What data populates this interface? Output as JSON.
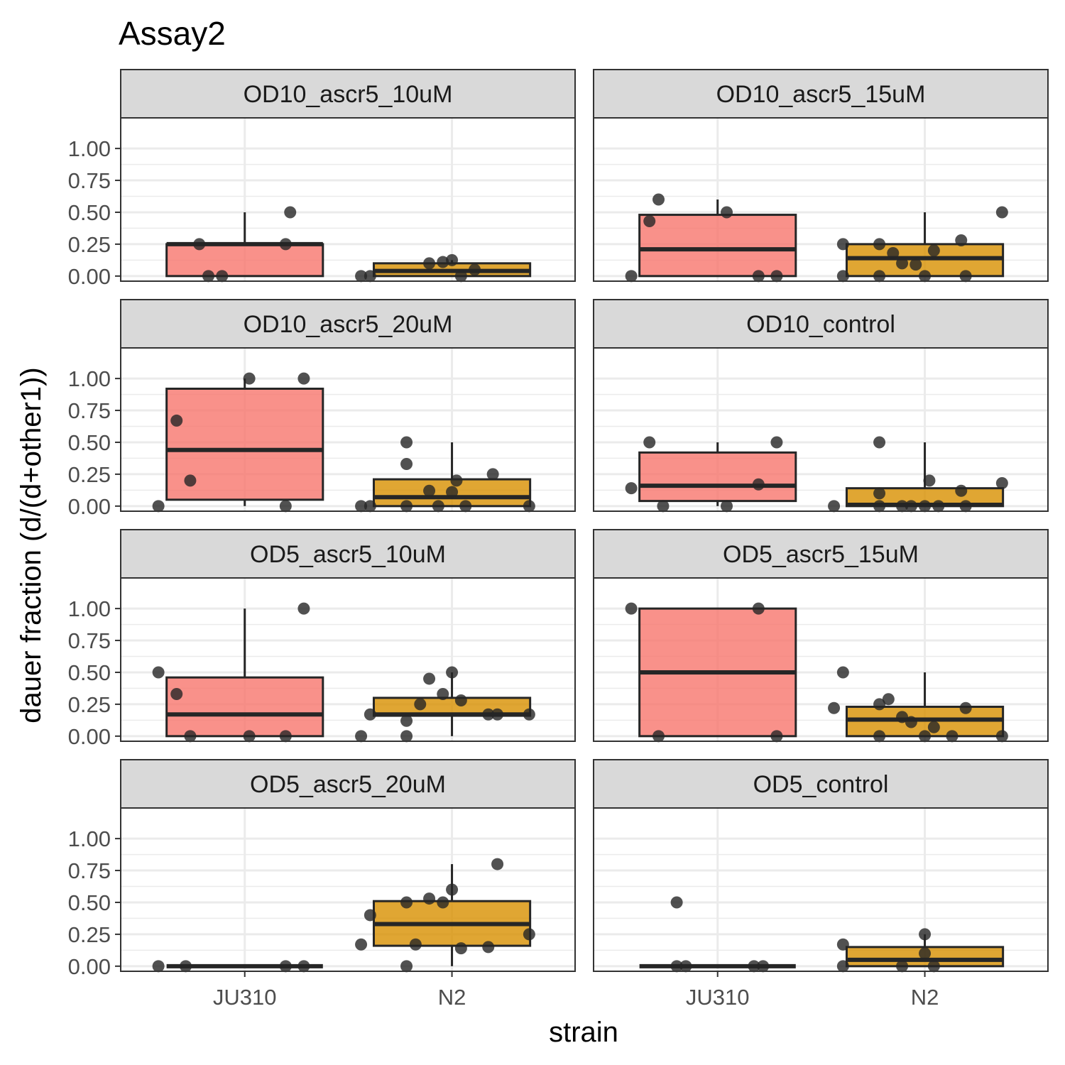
{
  "chart_data": {
    "type": "box",
    "title": "Assay2",
    "xlabel": "strain",
    "ylabel": "dauer fraction (d/(d+other1))",
    "categories": [
      "JU310",
      "N2"
    ],
    "ylim": [
      -0.04,
      1.24
    ],
    "y_ticks": [
      0,
      0.25,
      0.5,
      0.75,
      1
    ],
    "y_tick_labels": [
      "0.00",
      "0.25",
      "0.50",
      "0.75",
      "1.00"
    ],
    "grid": true,
    "legend": "none",
    "colors": {
      "JU310": "#F8766D",
      "N2": "#D89000",
      "box_edge": "#262626",
      "point": "#262626",
      "strip_bg": "#D9D9D9",
      "grid": "#EBEBEB"
    },
    "panels": [
      {
        "label": "OD10_ascr5_10uM",
        "boxes": [
          {
            "strain": "JU310",
            "q1": 0,
            "median": 0.25,
            "q3": 0.25,
            "whisker_low": 0,
            "whisker_high": 0.5
          },
          {
            "strain": "N2",
            "q1": 0,
            "median": 0.04,
            "q3": 0.1,
            "whisker_low": 0,
            "whisker_high": 0.125
          }
        ],
        "points": [
          {
            "strain": "JU310",
            "offset": -0.05,
            "y": 0
          },
          {
            "strain": "JU310",
            "offset": -0.08,
            "y": 0
          },
          {
            "strain": "JU310",
            "offset": -0.1,
            "y": 0.25
          },
          {
            "strain": "JU310",
            "offset": 0.09,
            "y": 0.25
          },
          {
            "strain": "JU310",
            "offset": 0.1,
            "y": 0.5
          },
          {
            "strain": "N2",
            "offset": -0.2,
            "y": 0
          },
          {
            "strain": "N2",
            "offset": -0.18,
            "y": 0
          },
          {
            "strain": "N2",
            "offset": 0.02,
            "y": 0
          },
          {
            "strain": "N2",
            "offset": 0.05,
            "y": 0.05
          },
          {
            "strain": "N2",
            "offset": -0.05,
            "y": 0.1
          },
          {
            "strain": "N2",
            "offset": -0.02,
            "y": 0.11
          },
          {
            "strain": "N2",
            "offset": 0.0,
            "y": 0.125
          }
        ]
      },
      {
        "label": "OD10_ascr5_15uM",
        "boxes": [
          {
            "strain": "JU310",
            "q1": 0,
            "median": 0.21,
            "q3": 0.48,
            "whisker_low": 0,
            "whisker_high": 0.6
          },
          {
            "strain": "N2",
            "q1": 0,
            "median": 0.14,
            "q3": 0.25,
            "whisker_low": 0,
            "whisker_high": 0.5
          }
        ],
        "points": [
          {
            "strain": "JU310",
            "offset": -0.19,
            "y": 0
          },
          {
            "strain": "JU310",
            "offset": -0.15,
            "y": 0.43
          },
          {
            "strain": "JU310",
            "offset": -0.13,
            "y": 0.6
          },
          {
            "strain": "JU310",
            "offset": 0.02,
            "y": 0.5
          },
          {
            "strain": "JU310",
            "offset": 0.09,
            "y": 0
          },
          {
            "strain": "JU310",
            "offset": 0.13,
            "y": 0
          },
          {
            "strain": "N2",
            "offset": -0.18,
            "y": 0.25
          },
          {
            "strain": "N2",
            "offset": -0.18,
            "y": 0
          },
          {
            "strain": "N2",
            "offset": -0.1,
            "y": 0
          },
          {
            "strain": "N2",
            "offset": -0.1,
            "y": 0.25
          },
          {
            "strain": "N2",
            "offset": -0.07,
            "y": 0.18
          },
          {
            "strain": "N2",
            "offset": -0.05,
            "y": 0.1
          },
          {
            "strain": "N2",
            "offset": -0.02,
            "y": 0.09
          },
          {
            "strain": "N2",
            "offset": 0.0,
            "y": 0
          },
          {
            "strain": "N2",
            "offset": 0.02,
            "y": 0.2
          },
          {
            "strain": "N2",
            "offset": 0.08,
            "y": 0.28
          },
          {
            "strain": "N2",
            "offset": 0.09,
            "y": 0
          },
          {
            "strain": "N2",
            "offset": 0.17,
            "y": 0.5
          }
        ]
      },
      {
        "label": "OD10_ascr5_20uM",
        "boxes": [
          {
            "strain": "JU310",
            "q1": 0.05,
            "median": 0.44,
            "q3": 0.92,
            "whisker_low": 0,
            "whisker_high": 1
          },
          {
            "strain": "N2",
            "q1": 0,
            "median": 0.07,
            "q3": 0.21,
            "whisker_low": 0,
            "whisker_high": 0.5
          }
        ],
        "points": [
          {
            "strain": "JU310",
            "offset": -0.19,
            "y": 0
          },
          {
            "strain": "JU310",
            "offset": -0.15,
            "y": 0.67
          },
          {
            "strain": "JU310",
            "offset": -0.12,
            "y": 0.2
          },
          {
            "strain": "JU310",
            "offset": 0.01,
            "y": 1
          },
          {
            "strain": "JU310",
            "offset": 0.09,
            "y": 0
          },
          {
            "strain": "JU310",
            "offset": 0.13,
            "y": 1
          },
          {
            "strain": "N2",
            "offset": -0.2,
            "y": 0
          },
          {
            "strain": "N2",
            "offset": -0.18,
            "y": 0
          },
          {
            "strain": "N2",
            "offset": -0.1,
            "y": 0.5
          },
          {
            "strain": "N2",
            "offset": -0.1,
            "y": 0.33
          },
          {
            "strain": "N2",
            "offset": -0.1,
            "y": 0
          },
          {
            "strain": "N2",
            "offset": -0.05,
            "y": 0.12
          },
          {
            "strain": "N2",
            "offset": -0.03,
            "y": 0
          },
          {
            "strain": "N2",
            "offset": 0.0,
            "y": 0.11
          },
          {
            "strain": "N2",
            "offset": 0.01,
            "y": 0.2
          },
          {
            "strain": "N2",
            "offset": 0.03,
            "y": 0
          },
          {
            "strain": "N2",
            "offset": 0.09,
            "y": 0.25
          },
          {
            "strain": "N2",
            "offset": 0.17,
            "y": 0
          }
        ]
      },
      {
        "label": "OD10_control",
        "boxes": [
          {
            "strain": "JU310",
            "q1": 0.04,
            "median": 0.16,
            "q3": 0.42,
            "whisker_low": 0,
            "whisker_high": 0.5
          },
          {
            "strain": "N2",
            "q1": 0,
            "median": 0.01,
            "q3": 0.14,
            "whisker_low": 0,
            "whisker_high": 0.5
          }
        ],
        "points": [
          {
            "strain": "JU310",
            "offset": -0.19,
            "y": 0.14
          },
          {
            "strain": "JU310",
            "offset": -0.15,
            "y": 0.5
          },
          {
            "strain": "JU310",
            "offset": -0.12,
            "y": 0
          },
          {
            "strain": "JU310",
            "offset": 0.02,
            "y": 0
          },
          {
            "strain": "JU310",
            "offset": 0.09,
            "y": 0.17
          },
          {
            "strain": "JU310",
            "offset": 0.13,
            "y": 0.5
          },
          {
            "strain": "N2",
            "offset": -0.2,
            "y": 0
          },
          {
            "strain": "N2",
            "offset": -0.1,
            "y": 0.1
          },
          {
            "strain": "N2",
            "offset": -0.1,
            "y": 0.5
          },
          {
            "strain": "N2",
            "offset": -0.1,
            "y": 0
          },
          {
            "strain": "N2",
            "offset": -0.05,
            "y": 0
          },
          {
            "strain": "N2",
            "offset": -0.03,
            "y": 0
          },
          {
            "strain": "N2",
            "offset": 0.0,
            "y": 0
          },
          {
            "strain": "N2",
            "offset": 0.01,
            "y": 0.2
          },
          {
            "strain": "N2",
            "offset": 0.03,
            "y": 0
          },
          {
            "strain": "N2",
            "offset": 0.08,
            "y": 0.12
          },
          {
            "strain": "N2",
            "offset": 0.09,
            "y": 0
          },
          {
            "strain": "N2",
            "offset": 0.17,
            "y": 0.18
          }
        ]
      },
      {
        "label": "OD5_ascr5_10uM",
        "boxes": [
          {
            "strain": "JU310",
            "q1": 0,
            "median": 0.17,
            "q3": 0.46,
            "whisker_low": 0,
            "whisker_high": 1
          },
          {
            "strain": "N2",
            "q1": 0.16,
            "median": 0.17,
            "q3": 0.3,
            "whisker_low": 0,
            "whisker_high": 0.5
          }
        ],
        "points": [
          {
            "strain": "JU310",
            "offset": -0.19,
            "y": 0.5
          },
          {
            "strain": "JU310",
            "offset": -0.15,
            "y": 0.33
          },
          {
            "strain": "JU310",
            "offset": -0.12,
            "y": 0
          },
          {
            "strain": "JU310",
            "offset": 0.01,
            "y": 0
          },
          {
            "strain": "JU310",
            "offset": 0.09,
            "y": 0
          },
          {
            "strain": "JU310",
            "offset": 0.13,
            "y": 1
          },
          {
            "strain": "N2",
            "offset": -0.2,
            "y": 0
          },
          {
            "strain": "N2",
            "offset": -0.18,
            "y": 0.17
          },
          {
            "strain": "N2",
            "offset": -0.1,
            "y": 0.12
          },
          {
            "strain": "N2",
            "offset": -0.1,
            "y": 0
          },
          {
            "strain": "N2",
            "offset": -0.05,
            "y": 0.45
          },
          {
            "strain": "N2",
            "offset": -0.07,
            "y": 0.25
          },
          {
            "strain": "N2",
            "offset": -0.02,
            "y": 0.33
          },
          {
            "strain": "N2",
            "offset": 0.0,
            "y": 0.5
          },
          {
            "strain": "N2",
            "offset": 0.02,
            "y": 0.28
          },
          {
            "strain": "N2",
            "offset": 0.08,
            "y": 0.17
          },
          {
            "strain": "N2",
            "offset": 0.1,
            "y": 0.17
          },
          {
            "strain": "N2",
            "offset": 0.17,
            "y": 0.17
          }
        ]
      },
      {
        "label": "OD5_ascr5_15uM",
        "boxes": [
          {
            "strain": "JU310",
            "q1": 0,
            "median": 0.5,
            "q3": 1,
            "whisker_low": 0,
            "whisker_high": 1
          },
          {
            "strain": "N2",
            "q1": 0,
            "median": 0.13,
            "q3": 0.23,
            "whisker_low": 0,
            "whisker_high": 0.5
          }
        ],
        "points": [
          {
            "strain": "JU310",
            "offset": -0.19,
            "y": 1
          },
          {
            "strain": "JU310",
            "offset": -0.13,
            "y": 0
          },
          {
            "strain": "JU310",
            "offset": 0.09,
            "y": 1
          },
          {
            "strain": "JU310",
            "offset": 0.13,
            "y": 0
          },
          {
            "strain": "N2",
            "offset": -0.2,
            "y": 0.22
          },
          {
            "strain": "N2",
            "offset": -0.18,
            "y": 0.5
          },
          {
            "strain": "N2",
            "offset": -0.1,
            "y": 0
          },
          {
            "strain": "N2",
            "offset": -0.1,
            "y": 0.25
          },
          {
            "strain": "N2",
            "offset": -0.08,
            "y": 0.29
          },
          {
            "strain": "N2",
            "offset": -0.05,
            "y": 0.15
          },
          {
            "strain": "N2",
            "offset": -0.03,
            "y": 0.11
          },
          {
            "strain": "N2",
            "offset": 0.0,
            "y": 0
          },
          {
            "strain": "N2",
            "offset": 0.02,
            "y": 0.07
          },
          {
            "strain": "N2",
            "offset": 0.06,
            "y": 0
          },
          {
            "strain": "N2",
            "offset": 0.09,
            "y": 0.22
          },
          {
            "strain": "N2",
            "offset": 0.17,
            "y": 0
          }
        ]
      },
      {
        "label": "OD5_ascr5_20uM",
        "boxes": [
          {
            "strain": "JU310",
            "q1": 0,
            "median": 0,
            "q3": 0,
            "whisker_low": 0,
            "whisker_high": 0
          },
          {
            "strain": "N2",
            "q1": 0.16,
            "median": 0.33,
            "q3": 0.51,
            "whisker_low": 0,
            "whisker_high": 0.8
          }
        ],
        "points": [
          {
            "strain": "JU310",
            "offset": -0.19,
            "y": 0
          },
          {
            "strain": "JU310",
            "offset": -0.13,
            "y": 0
          },
          {
            "strain": "JU310",
            "offset": 0.09,
            "y": 0
          },
          {
            "strain": "JU310",
            "offset": 0.13,
            "y": 0
          },
          {
            "strain": "N2",
            "offset": -0.2,
            "y": 0.17
          },
          {
            "strain": "N2",
            "offset": -0.18,
            "y": 0.4
          },
          {
            "strain": "N2",
            "offset": -0.1,
            "y": 0.5
          },
          {
            "strain": "N2",
            "offset": -0.1,
            "y": 0
          },
          {
            "strain": "N2",
            "offset": -0.08,
            "y": 0.17
          },
          {
            "strain": "N2",
            "offset": -0.05,
            "y": 0.53
          },
          {
            "strain": "N2",
            "offset": -0.02,
            "y": 0.5
          },
          {
            "strain": "N2",
            "offset": 0.0,
            "y": 0.6
          },
          {
            "strain": "N2",
            "offset": 0.02,
            "y": 0.14
          },
          {
            "strain": "N2",
            "offset": 0.08,
            "y": 0.15
          },
          {
            "strain": "N2",
            "offset": 0.1,
            "y": 0.8
          },
          {
            "strain": "N2",
            "offset": 0.17,
            "y": 0.25
          }
        ]
      },
      {
        "label": "OD5_control",
        "boxes": [
          {
            "strain": "JU310",
            "q1": 0,
            "median": 0,
            "q3": 0,
            "whisker_low": 0,
            "whisker_high": 0
          },
          {
            "strain": "N2",
            "q1": 0,
            "median": 0.05,
            "q3": 0.15,
            "whisker_low": 0,
            "whisker_high": 0.25
          }
        ],
        "points": [
          {
            "strain": "JU310",
            "offset": -0.09,
            "y": 0.5
          },
          {
            "strain": "JU310",
            "offset": -0.09,
            "y": 0
          },
          {
            "strain": "JU310",
            "offset": -0.07,
            "y": 0
          },
          {
            "strain": "JU310",
            "offset": 0.08,
            "y": 0
          },
          {
            "strain": "JU310",
            "offset": 0.1,
            "y": 0
          },
          {
            "strain": "N2",
            "offset": -0.18,
            "y": 0.17
          },
          {
            "strain": "N2",
            "offset": -0.18,
            "y": 0
          },
          {
            "strain": "N2",
            "offset": -0.05,
            "y": 0
          },
          {
            "strain": "N2",
            "offset": 0.0,
            "y": 0.1
          },
          {
            "strain": "N2",
            "offset": 0.0,
            "y": 0.25
          },
          {
            "strain": "N2",
            "offset": 0.02,
            "y": 0
          }
        ]
      }
    ]
  }
}
